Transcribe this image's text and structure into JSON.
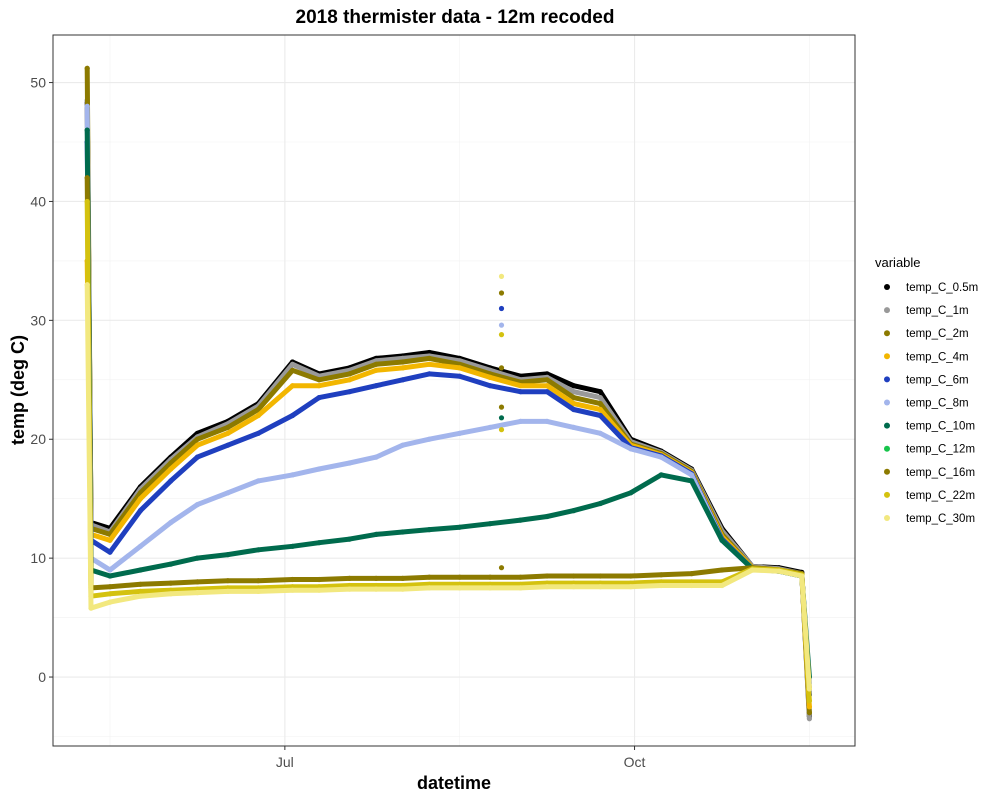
{
  "chart_data": {
    "type": "scatter",
    "title": "2018 thermister data - 12m recoded",
    "xlabel": "datetime",
    "ylabel": "temp (deg C)",
    "x_range": [
      "2018-05-01",
      "2018-11-28"
    ],
    "ylim": [
      -5.8,
      54
    ],
    "x_ticks": [
      {
        "date": "2018-07-01",
        "label": "Jul"
      },
      {
        "date": "2018-10-01",
        "label": "Oct"
      }
    ],
    "x_minor_ticks": [
      "2018-05-16",
      "2018-08-16",
      "2018-11-16"
    ],
    "y_ticks": [
      0,
      10,
      20,
      30,
      40,
      50
    ],
    "grid": true,
    "legend_title": "variable",
    "legend_position": "right",
    "series": [
      {
        "name": "temp_C_0.5m",
        "color": "#000000",
        "x": [
          "2018-05-10",
          "2018-05-11",
          "2018-05-16",
          "2018-05-24",
          "2018-06-01",
          "2018-06-08",
          "2018-06-16",
          "2018-06-24",
          "2018-07-03",
          "2018-07-10",
          "2018-07-18",
          "2018-07-25",
          "2018-08-01",
          "2018-08-08",
          "2018-08-16",
          "2018-08-24",
          "2018-09-01",
          "2018-09-08",
          "2018-09-15",
          "2018-09-22",
          "2018-09-30",
          "2018-10-08",
          "2018-10-16",
          "2018-10-24",
          "2018-11-01",
          "2018-11-08",
          "2018-11-14",
          "2018-11-16"
        ],
        "y": [
          48.3,
          13,
          12.5,
          16,
          18.5,
          20.5,
          21.5,
          23,
          26.5,
          25.5,
          26,
          26.8,
          27,
          27.3,
          26.8,
          26,
          25.3,
          25.5,
          24.5,
          24,
          20,
          19,
          17.5,
          12.5,
          9.3,
          9.2,
          8.8,
          -3.3
        ]
      },
      {
        "name": "temp_C_1m",
        "color": "#999999",
        "x": [
          "2018-05-10",
          "2018-05-11",
          "2018-05-16",
          "2018-05-24",
          "2018-06-01",
          "2018-06-08",
          "2018-06-16",
          "2018-06-24",
          "2018-07-03",
          "2018-07-10",
          "2018-07-18",
          "2018-07-25",
          "2018-08-01",
          "2018-08-08",
          "2018-08-16",
          "2018-08-24",
          "2018-09-01",
          "2018-09-08",
          "2018-09-15",
          "2018-09-22",
          "2018-09-30",
          "2018-10-08",
          "2018-10-16",
          "2018-10-24",
          "2018-11-01",
          "2018-11-08",
          "2018-11-14",
          "2018-11-16"
        ],
        "y": [
          48.5,
          12.8,
          12.2,
          15.8,
          18.3,
          20.2,
          21.3,
          22.8,
          26.3,
          25.3,
          25.8,
          26.6,
          26.8,
          27,
          26.6,
          25.8,
          25,
          25.2,
          24,
          23.5,
          19.8,
          18.9,
          17.4,
          12.3,
          9.3,
          9.1,
          8.7,
          -3.5
        ]
      },
      {
        "name": "temp_C_2m",
        "color": "#8c7a00",
        "x": [
          "2018-05-10",
          "2018-05-11",
          "2018-05-16",
          "2018-05-24",
          "2018-06-01",
          "2018-06-08",
          "2018-06-16",
          "2018-06-24",
          "2018-07-03",
          "2018-07-10",
          "2018-07-18",
          "2018-07-25",
          "2018-08-01",
          "2018-08-08",
          "2018-08-16",
          "2018-08-24",
          "2018-09-01",
          "2018-09-08",
          "2018-09-15",
          "2018-09-22",
          "2018-09-30",
          "2018-10-08",
          "2018-10-16",
          "2018-10-24",
          "2018-11-01",
          "2018-11-08",
          "2018-11-14",
          "2018-11-16"
        ],
        "y": [
          51.2,
          12.5,
          12,
          15.5,
          18,
          20,
          21,
          22.5,
          25.8,
          25,
          25.5,
          26.3,
          26.5,
          26.8,
          26.3,
          25.5,
          24.8,
          25,
          23.5,
          23,
          19.6,
          18.8,
          17.3,
          12,
          9.2,
          9,
          8.7,
          -3
        ]
      },
      {
        "name": "temp_C_4m",
        "color": "#f2b600",
        "x": [
          "2018-05-10",
          "2018-05-11",
          "2018-05-16",
          "2018-05-24",
          "2018-06-01",
          "2018-06-08",
          "2018-06-16",
          "2018-06-24",
          "2018-07-03",
          "2018-07-10",
          "2018-07-18",
          "2018-07-25",
          "2018-08-01",
          "2018-08-08",
          "2018-08-16",
          "2018-08-24",
          "2018-09-01",
          "2018-09-08",
          "2018-09-15",
          "2018-09-22",
          "2018-09-30",
          "2018-10-08",
          "2018-10-16",
          "2018-10-24",
          "2018-11-01",
          "2018-11-08",
          "2018-11-14",
          "2018-11-16"
        ],
        "y": [
          35,
          12,
          11.5,
          15,
          17.5,
          19.5,
          20.5,
          22,
          24.5,
          24.5,
          25,
          25.8,
          26,
          26.3,
          26,
          25.2,
          24.5,
          24.5,
          23,
          22.5,
          19.5,
          18.7,
          17.2,
          11.8,
          9.2,
          9,
          8.6,
          -2.5
        ]
      },
      {
        "name": "temp_C_6m",
        "color": "#1f3fbf",
        "x": [
          "2018-05-10",
          "2018-05-11",
          "2018-05-16",
          "2018-05-24",
          "2018-06-01",
          "2018-06-08",
          "2018-06-16",
          "2018-06-24",
          "2018-07-03",
          "2018-07-10",
          "2018-07-18",
          "2018-07-25",
          "2018-08-01",
          "2018-08-08",
          "2018-08-16",
          "2018-08-24",
          "2018-09-01",
          "2018-09-08",
          "2018-09-15",
          "2018-09-22",
          "2018-09-30",
          "2018-10-08",
          "2018-10-16",
          "2018-10-24",
          "2018-11-01",
          "2018-11-08",
          "2018-11-14",
          "2018-11-16"
        ],
        "y": [
          45,
          11.5,
          10.5,
          14,
          16.5,
          18.5,
          19.5,
          20.5,
          22,
          23.5,
          24,
          24.5,
          25,
          25.5,
          25.3,
          24.5,
          24,
          24,
          22.5,
          22,
          19.3,
          18.6,
          17.1,
          11.6,
          9.1,
          8.9,
          8.5,
          -1.5
        ]
      },
      {
        "name": "temp_C_8m",
        "color": "#a3b5ec",
        "x": [
          "2018-05-10",
          "2018-05-11",
          "2018-05-16",
          "2018-05-24",
          "2018-06-01",
          "2018-06-08",
          "2018-06-16",
          "2018-06-24",
          "2018-07-03",
          "2018-07-10",
          "2018-07-18",
          "2018-07-25",
          "2018-08-01",
          "2018-08-08",
          "2018-08-16",
          "2018-08-24",
          "2018-09-01",
          "2018-09-08",
          "2018-09-15",
          "2018-09-22",
          "2018-09-30",
          "2018-10-08",
          "2018-10-16",
          "2018-10-24",
          "2018-11-01",
          "2018-11-08",
          "2018-11-14",
          "2018-11-16"
        ],
        "y": [
          48,
          10,
          9,
          11,
          13,
          14.5,
          15.5,
          16.5,
          17,
          17.5,
          18,
          18.5,
          19.5,
          20,
          20.5,
          21,
          21.5,
          21.5,
          21,
          20.5,
          19.2,
          18.5,
          17,
          11.5,
          9.1,
          8.9,
          8.5,
          -0.5
        ]
      },
      {
        "name": "temp_C_10m",
        "color": "#006b4d",
        "x": [
          "2018-05-10",
          "2018-05-11",
          "2018-05-16",
          "2018-05-24",
          "2018-06-01",
          "2018-06-08",
          "2018-06-16",
          "2018-06-24",
          "2018-07-03",
          "2018-07-10",
          "2018-07-18",
          "2018-07-25",
          "2018-08-01",
          "2018-08-08",
          "2018-08-16",
          "2018-08-24",
          "2018-09-01",
          "2018-09-08",
          "2018-09-15",
          "2018-09-22",
          "2018-09-30",
          "2018-10-08",
          "2018-10-16",
          "2018-10-24",
          "2018-11-01",
          "2018-11-08",
          "2018-11-14",
          "2018-11-16"
        ],
        "y": [
          46,
          9,
          8.5,
          9,
          9.5,
          10,
          10.3,
          10.7,
          11,
          11.3,
          11.6,
          12,
          12.2,
          12.4,
          12.6,
          12.9,
          13.2,
          13.5,
          14,
          14.6,
          15.5,
          17,
          16.5,
          11.5,
          9.1,
          8.9,
          8.5,
          0
        ]
      },
      {
        "name": "temp_C_12m",
        "color": "#17c44b",
        "x": [],
        "y": []
      },
      {
        "name": "temp_C_16m",
        "color": "#8c7a00",
        "x": [
          "2018-05-10",
          "2018-05-11",
          "2018-05-16",
          "2018-05-24",
          "2018-06-01",
          "2018-06-08",
          "2018-06-16",
          "2018-06-24",
          "2018-07-03",
          "2018-07-10",
          "2018-07-18",
          "2018-07-25",
          "2018-08-01",
          "2018-08-08",
          "2018-08-16",
          "2018-08-24",
          "2018-09-01",
          "2018-09-08",
          "2018-09-15",
          "2018-09-22",
          "2018-09-30",
          "2018-10-08",
          "2018-10-16",
          "2018-10-24",
          "2018-11-01",
          "2018-11-08",
          "2018-11-14",
          "2018-11-16"
        ],
        "y": [
          42,
          7.5,
          7.6,
          7.8,
          7.9,
          8,
          8.1,
          8.1,
          8.2,
          8.2,
          8.3,
          8.3,
          8.3,
          8.4,
          8.4,
          8.4,
          8.4,
          8.5,
          8.5,
          8.5,
          8.5,
          8.6,
          8.7,
          9,
          9.2,
          9,
          8.6,
          -1
        ]
      },
      {
        "name": "temp_C_22m",
        "color": "#d4c20f",
        "x": [
          "2018-05-10",
          "2018-05-11",
          "2018-05-16",
          "2018-05-24",
          "2018-06-01",
          "2018-06-08",
          "2018-06-16",
          "2018-06-24",
          "2018-07-03",
          "2018-07-10",
          "2018-07-18",
          "2018-07-25",
          "2018-08-01",
          "2018-08-08",
          "2018-08-16",
          "2018-08-24",
          "2018-09-01",
          "2018-09-08",
          "2018-09-15",
          "2018-09-22",
          "2018-09-30",
          "2018-10-08",
          "2018-10-16",
          "2018-10-24",
          "2018-11-01",
          "2018-11-08",
          "2018-11-14",
          "2018-11-16"
        ],
        "y": [
          40,
          6.8,
          7,
          7.2,
          7.3,
          7.4,
          7.5,
          7.5,
          7.6,
          7.6,
          7.7,
          7.7,
          7.7,
          7.8,
          7.8,
          7.8,
          7.8,
          7.9,
          7.9,
          7.9,
          7.9,
          8,
          8,
          8,
          9.1,
          9,
          8.6,
          -2
        ]
      },
      {
        "name": "temp_C_30m",
        "color": "#f2e87f",
        "x": [
          "2018-05-10",
          "2018-05-11",
          "2018-05-16",
          "2018-05-24",
          "2018-06-01",
          "2018-06-08",
          "2018-06-16",
          "2018-06-24",
          "2018-07-03",
          "2018-07-10",
          "2018-07-18",
          "2018-07-25",
          "2018-08-01",
          "2018-08-08",
          "2018-08-16",
          "2018-08-24",
          "2018-09-01",
          "2018-09-08",
          "2018-09-15",
          "2018-09-22",
          "2018-09-30",
          "2018-10-08",
          "2018-10-16",
          "2018-10-24",
          "2018-11-01",
          "2018-11-08",
          "2018-11-14",
          "2018-11-16"
        ],
        "y": [
          33,
          5.8,
          6.3,
          6.8,
          7,
          7.1,
          7.2,
          7.2,
          7.3,
          7.3,
          7.4,
          7.4,
          7.4,
          7.5,
          7.5,
          7.5,
          7.5,
          7.6,
          7.6,
          7.6,
          7.6,
          7.7,
          7.7,
          7.7,
          9,
          8.9,
          8.5,
          -1
        ]
      }
    ],
    "outlier_points": [
      {
        "x": "2018-08-27",
        "y": 33.7,
        "color": "#f2e87f"
      },
      {
        "x": "2018-08-27",
        "y": 32.3,
        "color": "#8c7a00"
      },
      {
        "x": "2018-08-27",
        "y": 31.0,
        "color": "#1f3fbf"
      },
      {
        "x": "2018-08-27",
        "y": 29.6,
        "color": "#a3b5ec"
      },
      {
        "x": "2018-08-27",
        "y": 28.8,
        "color": "#d4c20f"
      },
      {
        "x": "2018-08-27",
        "y": 26.0,
        "color": "#8c7a00"
      },
      {
        "x": "2018-08-27",
        "y": 22.7,
        "color": "#8c7a00"
      },
      {
        "x": "2018-08-27",
        "y": 21.8,
        "color": "#006b4d"
      },
      {
        "x": "2018-08-27",
        "y": 20.8,
        "color": "#d4c20f"
      },
      {
        "x": "2018-08-27",
        "y": 9.2,
        "color": "#8c7a00"
      }
    ]
  }
}
